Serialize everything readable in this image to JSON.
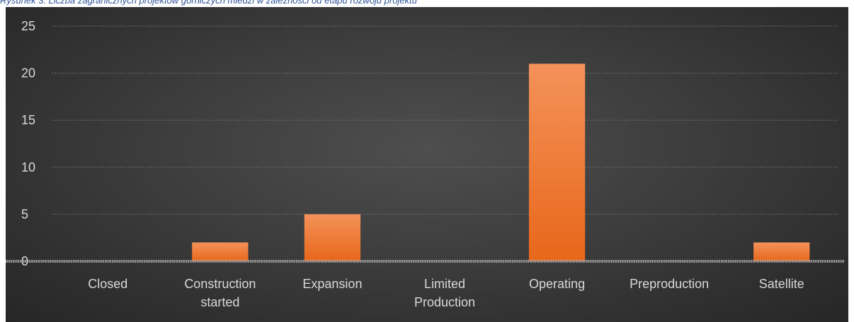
{
  "caption": "Rysunek 3. Liczba zagranicznych projektów górniczych miedzi w zależności od etapu rozwoju projektu",
  "chart_data": {
    "type": "bar",
    "categories": [
      "Closed",
      "Construction started",
      "Expansion",
      "Limited Production",
      "Operating",
      "Preproduction",
      "Satellite"
    ],
    "category_lines": [
      [
        "Closed"
      ],
      [
        "Construction",
        "started"
      ],
      [
        "Expansion"
      ],
      [
        "Limited",
        "Production"
      ],
      [
        "Operating"
      ],
      [
        "Preproduction"
      ],
      [
        "Satellite"
      ]
    ],
    "values": [
      0,
      2,
      5,
      0,
      21,
      0,
      2
    ],
    "ylim": [
      0,
      25
    ],
    "yticks": [
      0,
      5,
      10,
      15,
      20,
      25
    ],
    "grid": true,
    "bar_color": "#ed7d31",
    "background_color": "#3a3a3a"
  }
}
